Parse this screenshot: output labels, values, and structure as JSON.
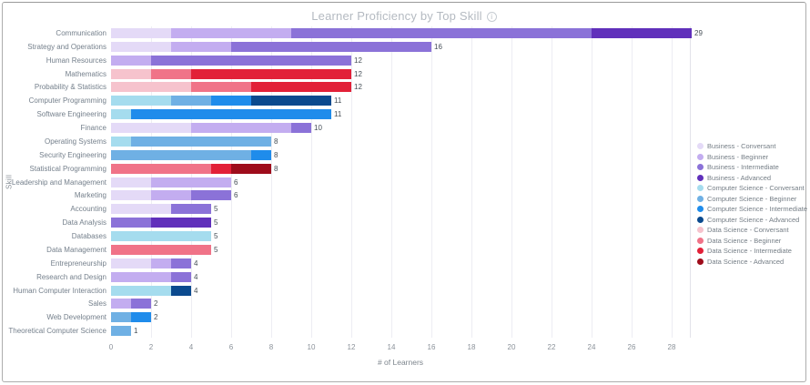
{
  "header": {
    "title": "Learner Proficiency by Top Skill",
    "info_icon": "i"
  },
  "chart_data": {
    "type": "bar",
    "orientation": "horizontal",
    "stacked": true,
    "title": "Learner Proficiency by Top Skill",
    "xlabel": "# of Learners",
    "ylabel": "Skill",
    "xlim": [
      0,
      29
    ],
    "xticks": [
      0,
      2,
      4,
      6,
      8,
      10,
      12,
      14,
      16,
      18,
      20,
      22,
      24,
      26,
      28
    ],
    "grid": true,
    "legend_position": "right",
    "value_labels": "end-of-bar",
    "legend": [
      "Business - Conversant",
      "Business - Beginner",
      "Business - Intermediate",
      "Business - Advanced",
      "Computer Science - Conversant",
      "Computer Science - Beginner",
      "Computer Science - Intermediate",
      "Computer Science - Advanced",
      "Data Science - Conversant",
      "Data Science - Beginner",
      "Data Science - Intermediate",
      "Data Science - Advanced"
    ],
    "colors": {
      "Business - Conversant": "#e4daf7",
      "Business - Beginner": "#c3adf0",
      "Business - Intermediate": "#8b72d8",
      "Business - Advanced": "#6030bb",
      "Computer Science - Conversant": "#a5dcee",
      "Computer Science - Beginner": "#6fb0e4",
      "Computer Science - Intermediate": "#1f8ceb",
      "Computer Science - Advanced": "#0b4a8e",
      "Data Science - Conversant": "#f6c3cd",
      "Data Science - Beginner": "#f07388",
      "Data Science - Intermediate": "#e22038",
      "Data Science - Advanced": "#9e0c1b"
    },
    "rows": [
      {
        "skill": "Communication",
        "total": 29,
        "segments": [
          [
            "Business - Conversant",
            3
          ],
          [
            "Business - Beginner",
            6
          ],
          [
            "Business - Intermediate",
            15
          ],
          [
            "Business - Advanced",
            5
          ]
        ]
      },
      {
        "skill": "Strategy and Operations",
        "total": 16,
        "segments": [
          [
            "Business - Conversant",
            3
          ],
          [
            "Business - Beginner",
            3
          ],
          [
            "Business - Intermediate",
            10
          ]
        ]
      },
      {
        "skill": "Human Resources",
        "total": 12,
        "segments": [
          [
            "Business - Beginner",
            2
          ],
          [
            "Business - Intermediate",
            10
          ]
        ]
      },
      {
        "skill": "Mathematics",
        "total": 12,
        "segments": [
          [
            "Data Science - Conversant",
            2
          ],
          [
            "Data Science - Beginner",
            2
          ],
          [
            "Data Science - Intermediate",
            8
          ]
        ]
      },
      {
        "skill": "Probability & Statistics",
        "total": 12,
        "segments": [
          [
            "Data Science - Conversant",
            4
          ],
          [
            "Data Science - Beginner",
            3
          ],
          [
            "Data Science - Intermediate",
            5
          ]
        ]
      },
      {
        "skill": "Computer Programming",
        "total": 11,
        "segments": [
          [
            "Computer Science - Conversant",
            3
          ],
          [
            "Computer Science - Beginner",
            2
          ],
          [
            "Computer Science - Intermediate",
            2
          ],
          [
            "Computer Science - Advanced",
            4
          ]
        ]
      },
      {
        "skill": "Software Engineering",
        "total": 11,
        "segments": [
          [
            "Computer Science - Conversant",
            1
          ],
          [
            "Computer Science - Intermediate",
            10
          ]
        ]
      },
      {
        "skill": "Finance",
        "total": 10,
        "segments": [
          [
            "Business - Conversant",
            4
          ],
          [
            "Business - Beginner",
            5
          ],
          [
            "Business - Intermediate",
            1
          ]
        ]
      },
      {
        "skill": "Operating Systems",
        "total": 8,
        "segments": [
          [
            "Computer Science - Conversant",
            1
          ],
          [
            "Computer Science - Beginner",
            7
          ]
        ]
      },
      {
        "skill": "Security Engineering",
        "total": 8,
        "segments": [
          [
            "Computer Science - Beginner",
            7
          ],
          [
            "Computer Science - Intermediate",
            1
          ]
        ]
      },
      {
        "skill": "Statistical Programming",
        "total": 8,
        "segments": [
          [
            "Data Science - Beginner",
            5
          ],
          [
            "Data Science - Intermediate",
            1
          ],
          [
            "Data Science - Advanced",
            2
          ]
        ]
      },
      {
        "skill": "Leadership and Management",
        "total": 6,
        "segments": [
          [
            "Business - Conversant",
            2
          ],
          [
            "Business - Beginner",
            4
          ]
        ]
      },
      {
        "skill": "Marketing",
        "total": 6,
        "segments": [
          [
            "Business - Conversant",
            2
          ],
          [
            "Business - Beginner",
            2
          ],
          [
            "Business - Intermediate",
            2
          ]
        ]
      },
      {
        "skill": "Accounting",
        "total": 5,
        "segments": [
          [
            "Business - Conversant",
            3
          ],
          [
            "Business - Intermediate",
            2
          ]
        ]
      },
      {
        "skill": "Data Analysis",
        "total": 5,
        "segments": [
          [
            "Business - Intermediate",
            2
          ],
          [
            "Business - Advanced",
            3
          ]
        ]
      },
      {
        "skill": "Databases",
        "total": 5,
        "segments": [
          [
            "Computer Science - Conversant",
            5
          ]
        ]
      },
      {
        "skill": "Data Management",
        "total": 5,
        "segments": [
          [
            "Data Science - Beginner",
            5
          ]
        ]
      },
      {
        "skill": "Entrepreneurship",
        "total": 4,
        "segments": [
          [
            "Business - Conversant",
            2
          ],
          [
            "Business - Beginner",
            1
          ],
          [
            "Business - Intermediate",
            1
          ]
        ]
      },
      {
        "skill": "Research and Design",
        "total": 4,
        "segments": [
          [
            "Business - Beginner",
            3
          ],
          [
            "Business - Intermediate",
            1
          ]
        ]
      },
      {
        "skill": "Human Computer Interaction",
        "total": 4,
        "segments": [
          [
            "Computer Science - Conversant",
            3
          ],
          [
            "Computer Science - Advanced",
            1
          ]
        ]
      },
      {
        "skill": "Sales",
        "total": 2,
        "segments": [
          [
            "Business - Beginner",
            1
          ],
          [
            "Business - Intermediate",
            1
          ]
        ]
      },
      {
        "skill": "Web Development",
        "total": 2,
        "segments": [
          [
            "Computer Science - Beginner",
            1
          ],
          [
            "Computer Science - Intermediate",
            1
          ]
        ]
      },
      {
        "skill": "Theoretical Computer Science",
        "total": 1,
        "segments": [
          [
            "Computer Science - Beginner",
            1
          ]
        ]
      }
    ]
  }
}
